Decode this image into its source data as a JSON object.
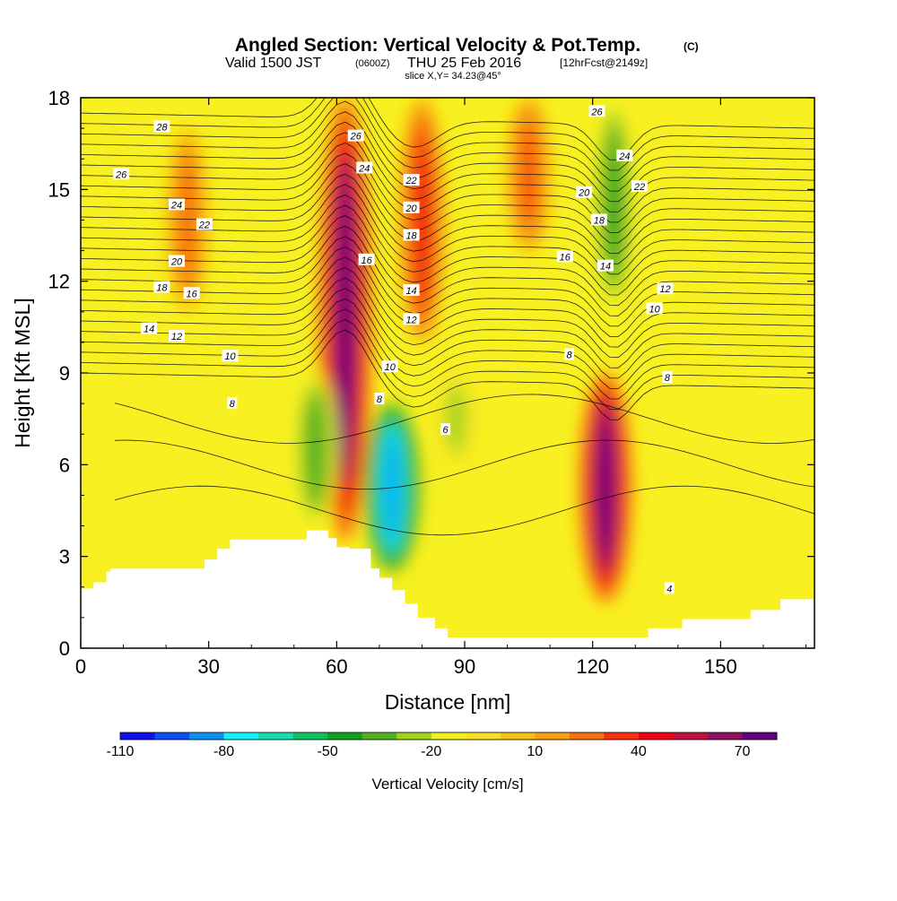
{
  "title": {
    "main": "Angled Section: Vertical Velocity & Pot.Temp.",
    "units_tag": "(C)",
    "valid_prefix": "Valid 1500 JST",
    "valid_utc": "(0600Z)",
    "valid_date": "THU 25 Feb 2016",
    "forecast_tag": "[12hrFcst@2149z]",
    "slice": "slice X,Y= 34.23@45°"
  },
  "chart_data": {
    "type": "heatmap",
    "title": "Angled Section: Vertical Velocity & Pot.Temp.",
    "xlabel": "Distance [nm]",
    "ylabel": "Height [Kft MSL]",
    "xlim": [
      0,
      172
    ],
    "ylim": [
      0,
      18
    ],
    "xticks": [
      0,
      30,
      60,
      90,
      120,
      150
    ],
    "yticks": [
      0,
      3,
      6,
      9,
      12,
      15,
      18
    ],
    "colorbar": {
      "label": "Vertical Velocity [cm/s]",
      "tick_labels": [
        "-110",
        "-80",
        "-50",
        "-20",
        "10",
        "40",
        "70"
      ],
      "levels": [
        -110,
        -100,
        -90,
        -80,
        -70,
        -60,
        -50,
        -40,
        -30,
        -20,
        -10,
        0,
        10,
        20,
        30,
        40,
        50,
        60,
        70,
        80
      ],
      "colors": [
        "#1010ee",
        "#0a50f0",
        "#0a90f0",
        "#10f0ff",
        "#10e0b0",
        "#10c060",
        "#10a020",
        "#50b020",
        "#a0d020",
        "#f0f020",
        "#f8e020",
        "#f8c010",
        "#f8a010",
        "#f87010",
        "#f83010",
        "#f00010",
        "#c01040",
        "#901060",
        "#600080"
      ]
    },
    "velocity_features": [
      {
        "kind": "updraft",
        "x": 62,
        "y_range": [
          3.5,
          18
        ],
        "peak_cm_s": 75
      },
      {
        "kind": "updraft",
        "x": 123,
        "y_range": [
          1.5,
          9
        ],
        "peak_cm_s": 75
      },
      {
        "kind": "updraft",
        "x": 80,
        "y_range": [
          10,
          18
        ],
        "peak_cm_s": 40
      },
      {
        "kind": "updraft",
        "x": 105,
        "y_range": [
          13,
          18
        ],
        "peak_cm_s": 30
      },
      {
        "kind": "updraft",
        "x": 25,
        "y_range": [
          11,
          17
        ],
        "peak_cm_s": 25
      },
      {
        "kind": "downdraft",
        "x": 73,
        "y_range": [
          2.5,
          8
        ],
        "peak_cm_s": -90
      },
      {
        "kind": "downdraft",
        "x": 125,
        "y_range": [
          11,
          18
        ],
        "peak_cm_s": -45
      },
      {
        "kind": "downdraft",
        "x": 55,
        "y_range": [
          4,
          9
        ],
        "peak_cm_s": -40
      },
      {
        "kind": "downdraft",
        "x": 88,
        "y_range": [
          6,
          9
        ],
        "peak_cm_s": -25
      }
    ],
    "terrain_kft": {
      "x": [
        0,
        3,
        3,
        6,
        6,
        7,
        7,
        17,
        17,
        29,
        29,
        32,
        32,
        35,
        35,
        53,
        53,
        58,
        58,
        60,
        60,
        63,
        63,
        68,
        68,
        70,
        70,
        73,
        73,
        76,
        76,
        79,
        79,
        83,
        83,
        86,
        86,
        89,
        89,
        95,
        95,
        105,
        105,
        115,
        115,
        133,
        133,
        141,
        141,
        151,
        151,
        157,
        157,
        164,
        164,
        172
      ],
      "y": [
        1.95,
        1.95,
        2.15,
        2.15,
        2.5,
        2.5,
        2.6,
        2.6,
        2.6,
        2.6,
        2.9,
        2.9,
        3.25,
        3.25,
        3.55,
        3.55,
        3.85,
        3.85,
        3.6,
        3.6,
        3.3,
        3.3,
        3.25,
        3.25,
        2.6,
        2.6,
        2.3,
        2.3,
        1.9,
        1.9,
        1.45,
        1.45,
        1.0,
        1.0,
        0.65,
        0.65,
        0.35,
        0.35,
        0.35,
        0.35,
        0.35,
        0.35,
        0.35,
        0.35,
        0.35,
        0.35,
        0.65,
        0.65,
        0.95,
        0.95,
        0.95,
        0.95,
        1.25,
        1.25,
        1.6,
        1.6
      ]
    },
    "isentrope_labels": [
      {
        "text": "28",
        "x": 19,
        "y": 17.05
      },
      {
        "text": "26",
        "x": 9.5,
        "y": 15.5
      },
      {
        "text": "24",
        "x": 22.5,
        "y": 14.5
      },
      {
        "text": "22",
        "x": 29,
        "y": 13.85
      },
      {
        "text": "20",
        "x": 22.5,
        "y": 12.65
      },
      {
        "text": "18",
        "x": 19,
        "y": 11.8
      },
      {
        "text": "16",
        "x": 26,
        "y": 11.6
      },
      {
        "text": "14",
        "x": 16,
        "y": 10.45
      },
      {
        "text": "12",
        "x": 22.5,
        "y": 10.2
      },
      {
        "text": "10",
        "x": 35,
        "y": 9.55
      },
      {
        "text": "8",
        "x": 35.5,
        "y": 8.0
      },
      {
        "text": "26",
        "x": 64.5,
        "y": 16.75
      },
      {
        "text": "24",
        "x": 66.5,
        "y": 15.7
      },
      {
        "text": "22",
        "x": 77.5,
        "y": 15.3
      },
      {
        "text": "20",
        "x": 77.5,
        "y": 14.4
      },
      {
        "text": "18",
        "x": 77.5,
        "y": 13.5
      },
      {
        "text": "16",
        "x": 67,
        "y": 12.7
      },
      {
        "text": "14",
        "x": 77.5,
        "y": 11.7
      },
      {
        "text": "12",
        "x": 77.5,
        "y": 10.75
      },
      {
        "text": "10",
        "x": 72.5,
        "y": 9.2
      },
      {
        "text": "8",
        "x": 70,
        "y": 8.15
      },
      {
        "text": "6",
        "x": 85.5,
        "y": 7.15
      },
      {
        "text": "26",
        "x": 121,
        "y": 17.55
      },
      {
        "text": "24",
        "x": 127.5,
        "y": 16.1
      },
      {
        "text": "22",
        "x": 131,
        "y": 15.1
      },
      {
        "text": "20",
        "x": 118,
        "y": 14.9
      },
      {
        "text": "18",
        "x": 121.5,
        "y": 14.0
      },
      {
        "text": "16",
        "x": 113.5,
        "y": 12.8
      },
      {
        "text": "14",
        "x": 123,
        "y": 12.5
      },
      {
        "text": "12",
        "x": 137,
        "y": 11.75
      },
      {
        "text": "10",
        "x": 134.5,
        "y": 11.1
      },
      {
        "text": "8",
        "x": 114.5,
        "y": 9.6
      },
      {
        "text": "8",
        "x": 137.5,
        "y": 8.85
      },
      {
        "text": "4",
        "x": 138,
        "y": 1.95
      }
    ]
  }
}
